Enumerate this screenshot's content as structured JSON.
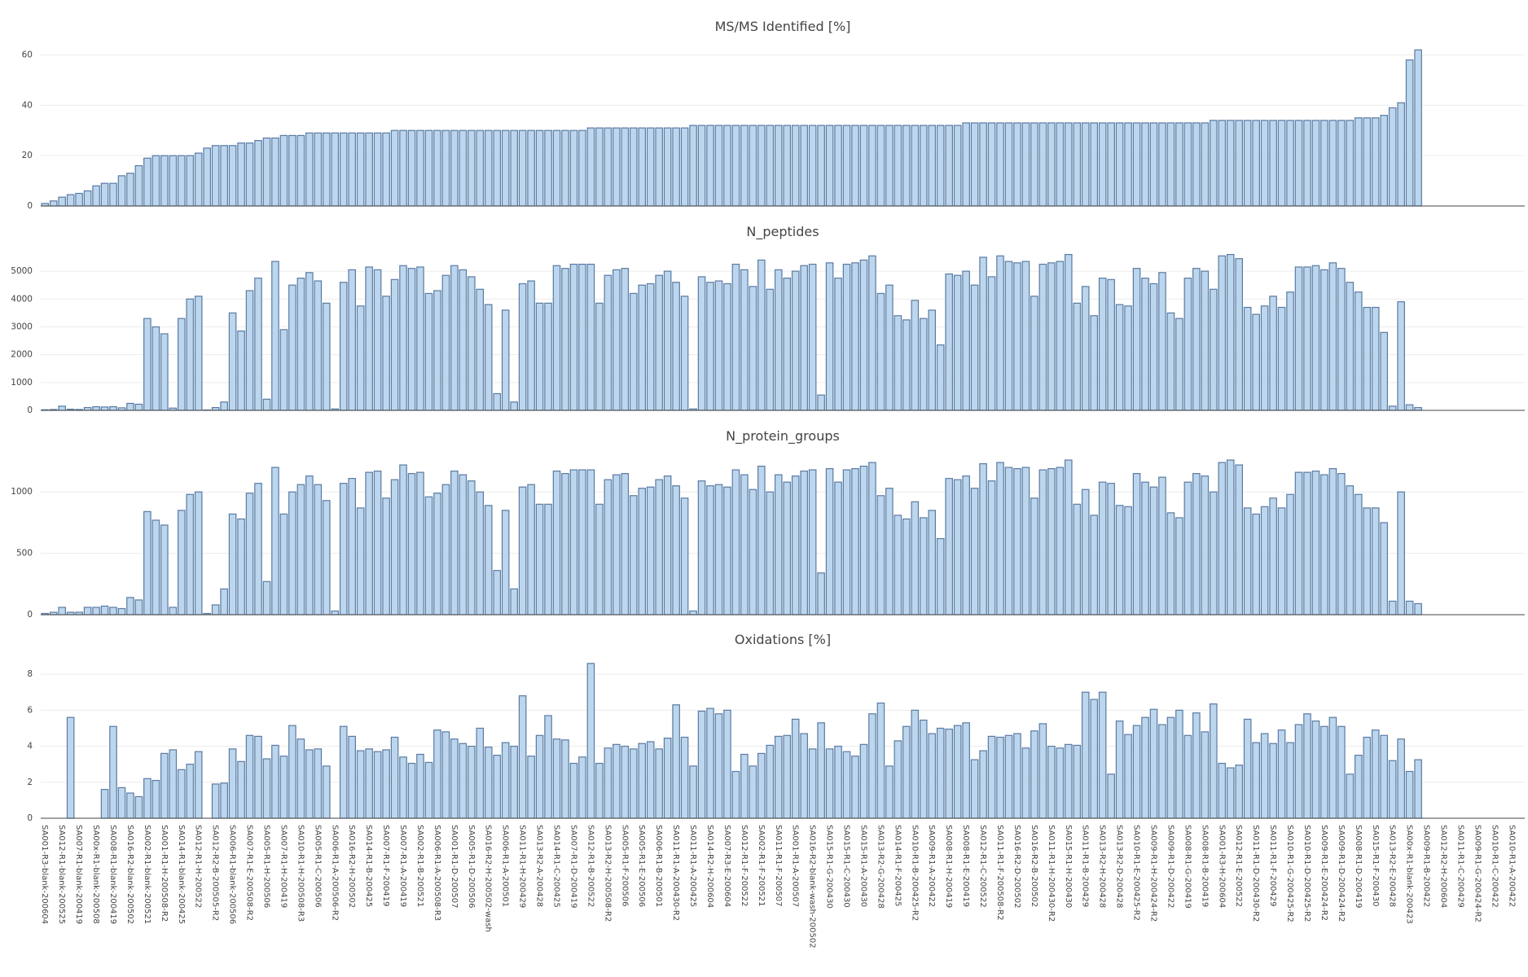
{
  "chart_data": [
    {
      "type": "bar",
      "title": "MS/MS Identified [%]",
      "color": "#bcd6ee",
      "edgecolor": "#5a7aa2",
      "grid": true,
      "ylim": [
        0,
        65
      ],
      "yticks": [
        0,
        20,
        40,
        60
      ],
      "values": [
        1,
        2,
        3.5,
        4.5,
        5,
        6,
        8,
        9,
        9,
        12,
        13,
        16,
        19,
        20,
        20,
        20,
        20,
        20,
        21,
        23,
        24,
        24,
        24,
        25,
        25,
        26,
        27,
        27,
        28,
        28,
        28,
        29,
        29,
        29,
        29,
        29,
        29,
        29,
        29,
        29,
        29,
        30,
        30,
        30,
        30,
        30,
        30,
        30,
        30,
        30,
        30,
        30,
        30,
        30,
        30,
        30,
        30,
        30,
        30,
        30,
        30,
        30,
        30,
        30,
        31,
        31,
        31,
        31,
        31,
        31,
        31,
        31,
        31,
        31,
        31,
        31,
        32,
        32,
        32,
        32,
        32,
        32,
        32,
        32,
        32,
        32,
        32,
        32,
        32,
        32,
        32,
        32,
        32,
        32,
        32,
        32,
        32,
        32,
        32,
        32,
        32,
        32,
        32,
        32,
        32,
        32,
        32,
        32,
        33,
        33,
        33,
        33,
        33,
        33,
        33,
        33,
        33,
        33,
        33,
        33,
        33,
        33,
        33,
        33,
        33,
        33,
        33,
        33,
        33,
        33,
        33,
        33,
        33,
        33,
        33,
        33,
        33,
        34,
        34,
        34,
        34,
        34,
        34,
        34,
        34,
        34,
        34,
        34,
        34,
        34,
        34,
        34,
        34,
        34,
        35,
        35,
        35,
        36,
        39,
        41,
        58,
        62,
        null,
        null,
        null,
        null,
        null,
        null,
        null,
        null,
        null,
        null,
        null,
        null
      ]
    },
    {
      "type": "bar",
      "title": "N_peptides",
      "color": "#bcd6ee",
      "edgecolor": "#5a7aa2",
      "grid": true,
      "ylim": [
        0,
        5880
      ],
      "yticks": [
        0,
        1000,
        2000,
        3000,
        4000,
        5000
      ],
      "values": [
        20,
        30,
        150,
        40,
        30,
        100,
        130,
        120,
        130,
        90,
        250,
        220,
        3300,
        3000,
        2750,
        80,
        3300,
        4000,
        4100,
        10,
        100,
        300,
        3500,
        2850,
        4300,
        4750,
        400,
        5350,
        2900,
        4500,
        4750,
        4950,
        4650,
        3850,
        50,
        4600,
        5050,
        3750,
        5150,
        5050,
        4100,
        4700,
        5200,
        5100,
        5150,
        4200,
        4300,
        4850,
        5200,
        5050,
        4800,
        4350,
        3800,
        600,
        3600,
        300,
        4550,
        4650,
        3850,
        3850,
        5200,
        5100,
        5250,
        5250,
        5250,
        3850,
        4850,
        5050,
        5100,
        4200,
        4500,
        4550,
        4850,
        5000,
        4600,
        4100,
        50,
        4800,
        4600,
        4650,
        4550,
        5250,
        5050,
        4450,
        5400,
        4350,
        5050,
        4750,
        5000,
        5200,
        5250,
        550,
        5300,
        4750,
        5250,
        5300,
        5400,
        5550,
        4200,
        4500,
        3400,
        3250,
        3950,
        3300,
        3600,
        2350,
        4900,
        4850,
        5000,
        4500,
        5500,
        4800,
        5550,
        5350,
        5300,
        5350,
        4100,
        5250,
        5300,
        5350,
        5600,
        3850,
        4450,
        3400,
        4750,
        4700,
        3800,
        3750,
        5100,
        4750,
        4550,
        4950,
        3500,
        3300,
        4750,
        5100,
        5000,
        4350,
        5550,
        5600,
        5450,
        3700,
        3450,
        3750,
        4100,
        3700,
        4250,
        5150,
        5150,
        5200,
        5050,
        5300,
        5100,
        4600,
        4250,
        3700,
        3700,
        2800,
        150,
        3900,
        200,
        100,
        null,
        null,
        null,
        null,
        null,
        null,
        null,
        null,
        null,
        null,
        null,
        null
      ]
    },
    {
      "type": "bar",
      "title": "N_protein_groups",
      "color": "#bcd6ee",
      "edgecolor": "#5a7aa2",
      "grid": true,
      "ylim": [
        0,
        1320
      ],
      "yticks": [
        0,
        500,
        1000
      ],
      "values": [
        10,
        20,
        60,
        20,
        20,
        60,
        60,
        70,
        60,
        50,
        140,
        120,
        840,
        770,
        730,
        60,
        850,
        980,
        1000,
        10,
        80,
        210,
        820,
        780,
        990,
        1070,
        270,
        1200,
        820,
        1000,
        1060,
        1130,
        1060,
        930,
        30,
        1070,
        1110,
        870,
        1160,
        1170,
        950,
        1100,
        1220,
        1150,
        1160,
        960,
        990,
        1060,
        1170,
        1140,
        1090,
        1000,
        890,
        360,
        850,
        210,
        1040,
        1060,
        900,
        900,
        1170,
        1150,
        1180,
        1180,
        1180,
        900,
        1100,
        1140,
        1150,
        970,
        1030,
        1040,
        1100,
        1130,
        1050,
        950,
        30,
        1090,
        1050,
        1060,
        1040,
        1180,
        1140,
        1020,
        1210,
        1000,
        1140,
        1080,
        1130,
        1170,
        1180,
        340,
        1190,
        1080,
        1180,
        1190,
        1210,
        1240,
        970,
        1030,
        810,
        780,
        920,
        790,
        850,
        620,
        1110,
        1100,
        1130,
        1030,
        1230,
        1090,
        1240,
        1200,
        1190,
        1200,
        950,
        1180,
        1190,
        1200,
        1260,
        900,
        1020,
        810,
        1080,
        1070,
        890,
        880,
        1150,
        1080,
        1040,
        1120,
        830,
        790,
        1080,
        1150,
        1130,
        1000,
        1240,
        1260,
        1220,
        870,
        820,
        880,
        950,
        870,
        980,
        1160,
        1160,
        1170,
        1140,
        1190,
        1150,
        1050,
        980,
        870,
        870,
        750,
        110,
        1000,
        110,
        90,
        null,
        null,
        null,
        null,
        null,
        null,
        null,
        null,
        null,
        null,
        null,
        null
      ]
    },
    {
      "type": "bar",
      "title": "Oxidations [%]",
      "color": "#bcd6ee",
      "edgecolor": "#5a7aa2",
      "grid": true,
      "ylim": [
        0,
        9
      ],
      "yticks": [
        0,
        2,
        4,
        6,
        8
      ],
      "values": [
        null,
        null,
        null,
        5.6,
        null,
        null,
        null,
        1.6,
        5.1,
        1.7,
        1.4,
        1.2,
        2.2,
        2.1,
        3.6,
        3.8,
        2.7,
        3.0,
        3.7,
        null,
        1.9,
        1.95,
        3.85,
        3.15,
        4.6,
        4.55,
        3.3,
        4.05,
        3.45,
        5.15,
        4.4,
        3.8,
        3.85,
        2.9,
        null,
        5.1,
        4.55,
        3.75,
        3.85,
        3.7,
        3.8,
        4.5,
        3.4,
        3.05,
        3.55,
        3.1,
        4.9,
        4.8,
        4.4,
        4.15,
        4.0,
        5.0,
        3.95,
        3.5,
        4.2,
        4.0,
        6.8,
        3.45,
        4.6,
        5.7,
        4.4,
        4.35,
        3.05,
        3.4,
        8.6,
        3.05,
        3.9,
        4.1,
        4.0,
        3.85,
        4.15,
        4.25,
        3.85,
        4.45,
        6.3,
        4.5,
        2.9,
        5.95,
        6.1,
        5.8,
        6.0,
        2.6,
        3.55,
        2.9,
        3.6,
        4.05,
        4.55,
        4.6,
        5.5,
        4.7,
        3.85,
        5.3,
        3.85,
        4.0,
        3.7,
        3.45,
        4.1,
        5.8,
        6.4,
        2.9,
        4.3,
        5.1,
        6.0,
        5.45,
        4.7,
        5.0,
        4.95,
        5.15,
        5.3,
        3.25,
        3.75,
        4.55,
        4.5,
        4.6,
        4.7,
        3.9,
        4.85,
        5.25,
        4.0,
        3.9,
        4.1,
        4.05,
        7.0,
        6.6,
        7.0,
        2.45,
        5.4,
        4.65,
        5.15,
        5.6,
        6.05,
        5.2,
        5.6,
        6.0,
        4.6,
        5.85,
        4.8,
        6.35,
        3.05,
        2.8,
        2.95,
        5.5,
        4.2,
        4.7,
        4.15,
        4.9,
        4.2,
        5.2,
        5.8,
        5.4,
        5.1,
        5.6,
        5.1,
        2.45,
        3.5,
        4.5,
        4.9,
        4.6,
        3.2,
        4.4,
        2.6,
        3.25,
        null,
        null,
        null,
        null,
        null,
        null,
        null,
        null,
        null,
        null,
        null,
        null
      ],
      "categories": [
        "SA001-R3-blank-200604",
        null,
        "SA012-R1-blank-200525",
        null,
        "SA007-R1-blank-200419",
        null,
        "SA00x-R1-blank-200508",
        null,
        "SA008-R1-blank-200419",
        null,
        "SA016-R2-blank-200502",
        null,
        "SA002-R1-blank-200521",
        null,
        "SA001-R1-H-200508-R2",
        null,
        "SA014-R1-blank-200425",
        null,
        "SA012-R1-H-200522",
        null,
        "SA012-R2-B-200505-R2",
        null,
        "SA006-R1-blank-200506",
        null,
        "SA007-R1-E-200508-R2",
        null,
        "SA005-R1-H-200506",
        null,
        "SA007-R1-H-200419",
        null,
        "SA010-R1-H-200508-R3",
        null,
        "SA005-R1-C-200506",
        null,
        "SA006-R1-A-200506-R2",
        null,
        "SA016-R2-H-200502",
        null,
        "SA014-R1-B-200425",
        null,
        "SA007-R1-F-200419",
        null,
        "SA007-R1-A-200419",
        null,
        "SA002-R1-B-200521",
        null,
        "SA006-R1-A-200508-R3",
        null,
        "SA001-R1-D-200507",
        null,
        "SA005-R1-D-200506",
        null,
        "SA016-R2-H-200502-wash",
        null,
        "SA006-R1-A-200501",
        null,
        "SA011-R1-H-200429",
        null,
        "SA013-R2-A-200428",
        null,
        "SA014-R1-C-200425",
        null,
        "SA007-R1-D-200419",
        null,
        "SA012-R1-B-200522",
        null,
        "SA013-R2-H-200508-R2",
        null,
        "SA005-R1-F-200506",
        null,
        "SA005-R1-E-200506",
        null,
        "SA006-R1-B-200501",
        null,
        "SA011-R1-A-200430-R2",
        null,
        "SA011-R1-A-200425",
        null,
        "SA014-R2-H-200604",
        null,
        "SA007-R3-E-200604",
        null,
        "SA012-R1-F-200522",
        null,
        "SA002-R1-F-200521",
        null,
        "SA011-R1-F-200507",
        null,
        "SA001-R1-A-200507",
        null,
        "SA016-R2-blank-wash-200502",
        null,
        "SA015-R1-G-200430",
        null,
        "SA015-R1-C-200430",
        null,
        "SA015-R1-A-200430",
        null,
        "SA013-R2-G-200428",
        null,
        "SA014-R1-F-200425",
        null,
        "SA010-R1-B-200425-R2",
        null,
        "SA009-R1-A-200422",
        null,
        "SA008-R1-H-200419",
        null,
        "SA008-R1-E-200419",
        null,
        "SA012-R1-C-200522",
        null,
        "SA011-R1-F-200508-R2",
        null,
        "SA016-R2-D-200502",
        null,
        "SA016-R2-B-200502",
        null,
        "SA011-R1-H-200430-R2",
        null,
        "SA015-R1-H-200430",
        null,
        "SA011-R1-B-200429",
        null,
        "SA013-R2-H-200428",
        null,
        "SA013-R2-D-200428",
        null,
        "SA010-R1-E-200425-R2",
        null,
        "SA009-R1-H-200424-R2",
        null,
        "SA009-R1-D-200422",
        null,
        "SA008-R1-G-200419",
        null,
        "SA008-R1-B-200419",
        null,
        "SA001-R3-H-200604",
        null,
        "SA012-R1-E-200522",
        null,
        "SA011-R1-D-200430-R2",
        null,
        "SA011-R1-F-200429",
        null,
        "SA010-R1-G-200425-R2",
        null,
        "SA010-R1-D-200425-R2",
        null,
        "SA009-R1-E-200424-R2",
        null,
        "SA009-R1-D-200424-R2",
        null,
        "SA008-R1-D-200419",
        null,
        "SA015-R1-F-200430",
        null,
        "SA013-R2-E-200428",
        null,
        "SA00x-R1-blank-200423",
        null,
        "SA009-R1-B-200422",
        null,
        "SA012-R2-H-200604",
        null,
        "SA011-R1-C-200429",
        null,
        "SA009-R1-G-200424-R2",
        null,
        "SA010-R1-C-200422",
        null,
        "SA010-R1-A-200422",
        null
      ]
    }
  ]
}
